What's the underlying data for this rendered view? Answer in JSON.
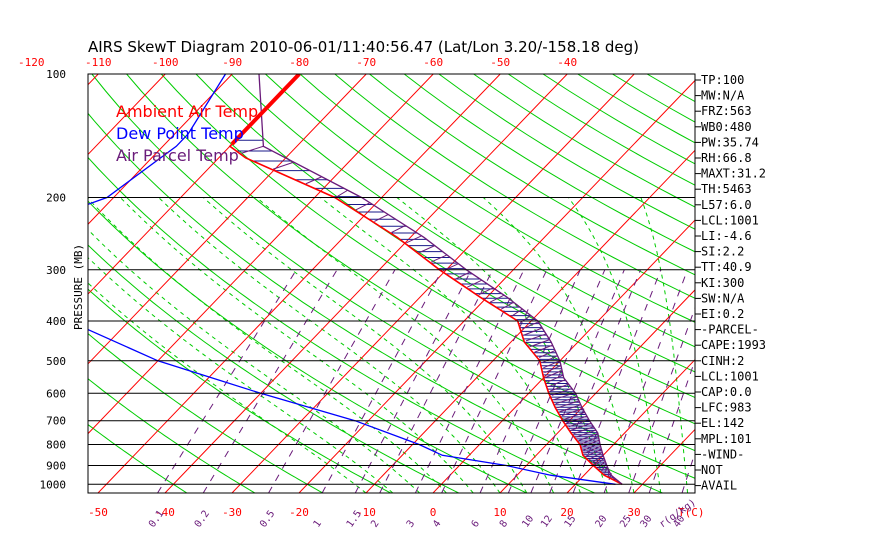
{
  "chart_data": {
    "type": "line",
    "title": "AIRS SkewT Diagram 2010-06-01/11:40:56.47 (Lat/Lon 3.20/-158.18 deg)",
    "ylabel": "PRESSURE (MB)",
    "xlabel_unit": "T(C)",
    "mixing_ratio_unit": "r(g/kg)",
    "pressure_ticks": [
      100,
      200,
      300,
      400,
      500,
      600,
      700,
      800,
      900,
      1000
    ],
    "top_temp_ticks": [
      -120,
      -110,
      -100,
      -90,
      -80,
      -70,
      -60,
      -50,
      -40
    ],
    "bottom_temp_ticks": [
      -50,
      -40,
      -30,
      -20,
      -10,
      0,
      10,
      20,
      30
    ],
    "mixing_ratio_ticks": [
      "0.1",
      "0.2",
      "0.5",
      "1",
      "1.5",
      "2",
      "3",
      "4",
      "6",
      "8",
      "10",
      "12",
      "15",
      "20",
      "25",
      "30",
      "40"
    ],
    "legend": [
      {
        "label": "Ambient Air Temp",
        "color": "#ff0000"
      },
      {
        "label": "Dew Point Temp",
        "color": "#0000ff"
      },
      {
        "label": "Air Parcel Temp",
        "color": "#6a1b7a"
      }
    ],
    "series": [
      {
        "name": "Ambient Air Temp",
        "color": "#ff0000",
        "p": [
          100,
          150,
          160,
          200,
          250,
          300,
          350,
          400,
          450,
          500,
          550,
          600,
          650,
          700,
          750,
          800,
          850,
          900,
          950,
          1000
        ],
        "t": [
          -80,
          -80,
          -76,
          -57,
          -42,
          -31,
          -21,
          -12,
          -8,
          -3,
          0,
          3,
          6,
          9,
          12,
          15,
          17,
          20,
          23,
          27
        ]
      },
      {
        "name": "Dew Point Temp",
        "color": "#0000ff",
        "p": [
          100,
          140,
          150,
          200,
          250,
          300,
          350,
          400,
          500,
          600,
          700,
          800,
          850,
          900,
          950,
          1000
        ],
        "t": [
          -91,
          -88,
          -88,
          -91,
          -102,
          -98,
          -88,
          -79,
          -60,
          -40,
          -22,
          -9,
          -4,
          7,
          15,
          26
        ]
      },
      {
        "name": "Air Parcel Temp",
        "color": "#6a1b7a",
        "p": [
          100,
          150,
          200,
          250,
          300,
          350,
          400,
          450,
          500,
          550,
          600,
          650,
          700,
          750,
          800,
          850,
          900,
          950,
          1000
        ],
        "t": [
          -86,
          -75,
          -53,
          -38,
          -27,
          -17,
          -9,
          -4,
          0,
          3,
          7,
          10,
          13,
          16,
          18,
          20,
          22,
          24,
          27
        ]
      }
    ]
  },
  "indices": [
    "TP:100",
    "MW:N/A",
    "FRZ:563",
    "WB0:480",
    "PW:35.74",
    "RH:66.8",
    "MAXT:31.2",
    "TH:5463",
    "L57:6.0",
    "LCL:1001",
    "LI:-4.6",
    "SI:2.2",
    "TT:40.9",
    "KI:300",
    "SW:N/A",
    "EI:0.2",
    "-PARCEL-",
    "CAPE:1993",
    "CINH:2",
    "LCL:1001",
    "CAP:0.0",
    "LFC:983",
    "EL:142",
    "MPL:101",
    "-WIND-",
    "NOT",
    "AVAIL"
  ],
  "colors": {
    "isotherm": "#ff0000",
    "dry_adiabat": "#00cc00",
    "moist_adiabat": "#00cc00",
    "mixing_ratio": "#6a1b7a",
    "isobar": "#000000",
    "axis_text": "#ff0000",
    "mixing_text": "#6a1b7a"
  }
}
